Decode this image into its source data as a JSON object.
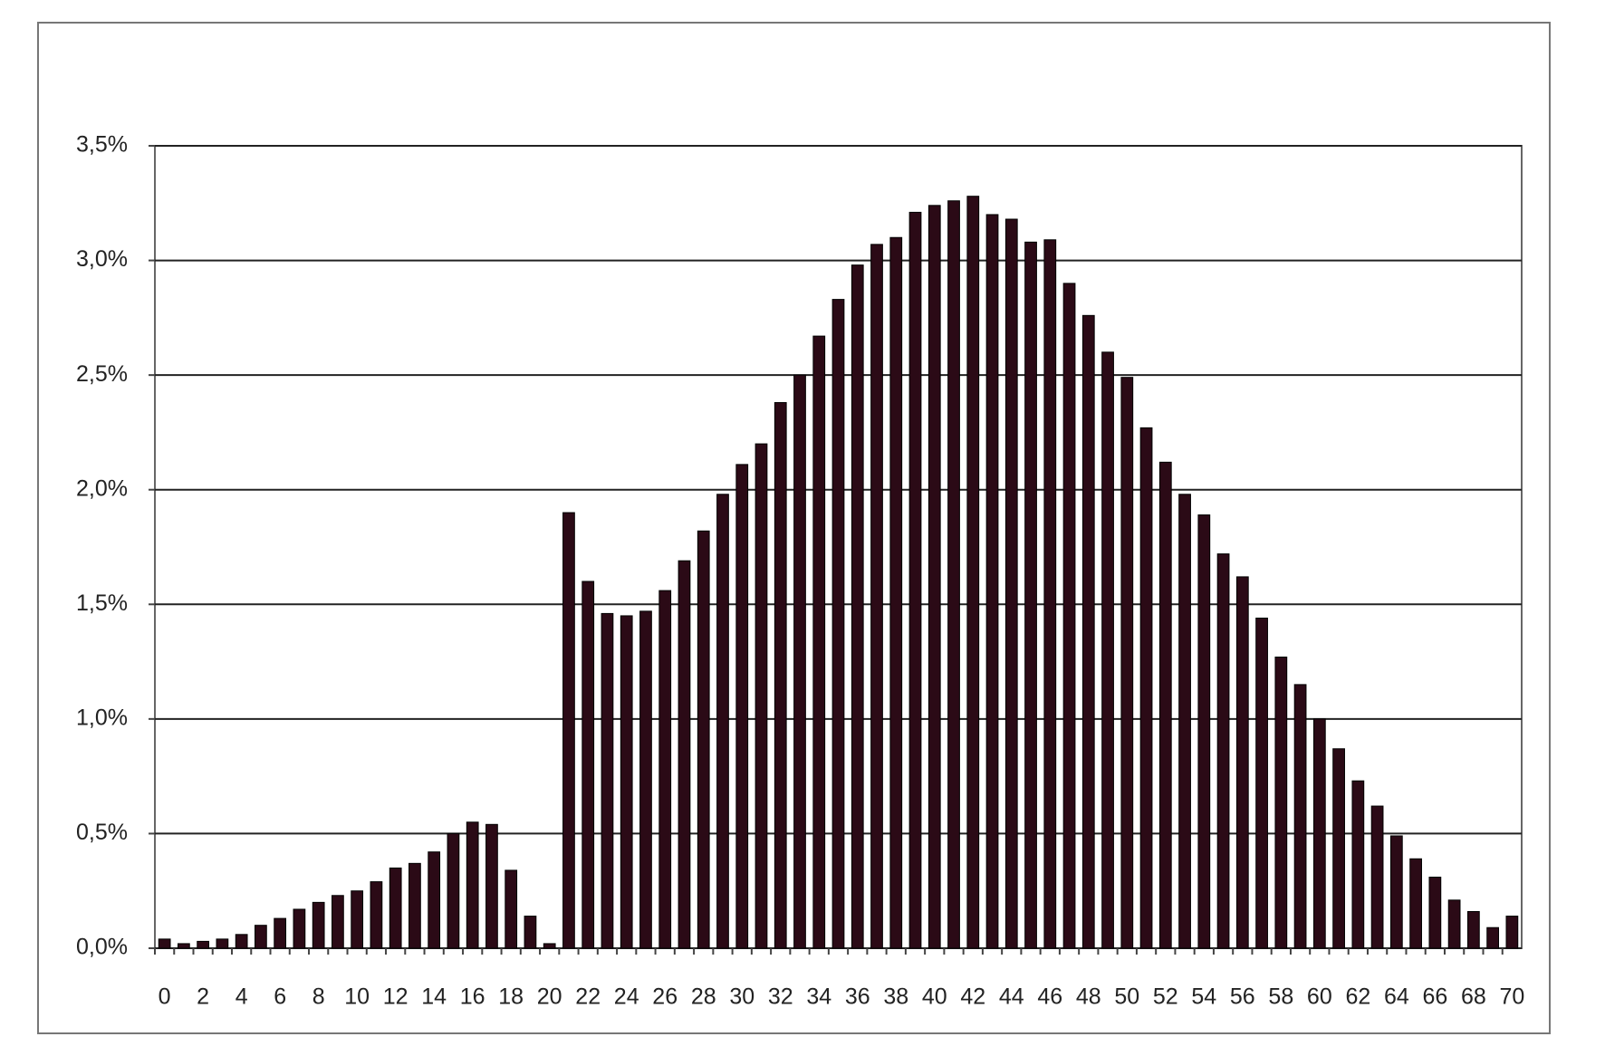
{
  "chart_data": {
    "type": "bar",
    "categories": [
      "0",
      null,
      "2",
      null,
      "4",
      null,
      "6",
      null,
      "8",
      null,
      "10",
      null,
      "12",
      null,
      "14",
      null,
      "16",
      null,
      "18",
      null,
      "20",
      null,
      "22",
      null,
      "24",
      null,
      "26",
      null,
      "28",
      null,
      "30",
      null,
      "32",
      null,
      "34",
      null,
      "36",
      null,
      "38",
      null,
      "40",
      null,
      "42",
      null,
      "44",
      null,
      "46",
      null,
      "48",
      null,
      "50",
      null,
      "52",
      null,
      "54",
      null,
      "56",
      null,
      "58",
      null,
      "60",
      null,
      "62",
      null,
      "64",
      null,
      "66",
      null,
      "68",
      null,
      "70"
    ],
    "values": [
      0.04,
      0.02,
      0.03,
      0.04,
      0.06,
      0.1,
      0.13,
      0.17,
      0.2,
      0.23,
      0.25,
      0.29,
      0.35,
      0.37,
      0.42,
      0.5,
      0.55,
      0.54,
      0.34,
      0.14,
      0.02,
      1.9,
      1.6,
      1.46,
      1.45,
      1.47,
      1.56,
      1.69,
      1.82,
      1.98,
      2.11,
      2.2,
      2.38,
      2.5,
      2.67,
      2.83,
      2.98,
      3.07,
      3.1,
      3.21,
      3.24,
      3.26,
      3.28,
      3.2,
      3.18,
      3.08,
      3.09,
      2.9,
      2.76,
      2.6,
      2.49,
      2.27,
      2.12,
      1.98,
      1.89,
      1.72,
      1.62,
      1.44,
      1.27,
      1.15,
      1.0,
      0.87,
      0.73,
      0.62,
      0.49,
      0.39,
      0.31,
      0.21,
      0.16,
      0.09,
      0.14
    ],
    "color": "#2b0a16",
    "ylim": [
      0,
      3.5
    ],
    "yticks": [
      {
        "value": 0,
        "label": "0,0%"
      },
      {
        "value": 0.5,
        "label": "0,5%"
      },
      {
        "value": 1,
        "label": "1,0%"
      },
      {
        "value": 1.5,
        "label": "1,5%"
      },
      {
        "value": 2,
        "label": "2,0%"
      },
      {
        "value": 2.5,
        "label": "2,5%"
      },
      {
        "value": 3,
        "label": "3,0%"
      },
      {
        "value": 3.5,
        "label": "3,5%"
      }
    ],
    "grid": true
  }
}
